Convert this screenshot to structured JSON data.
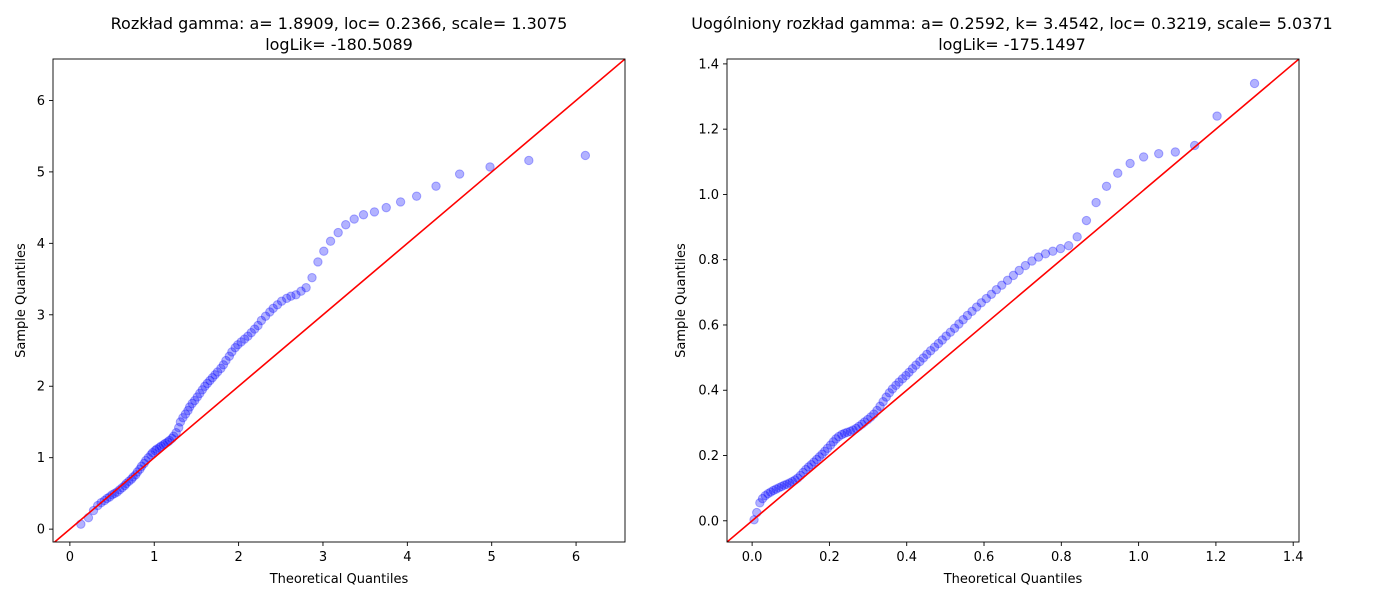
{
  "colors": {
    "points": "#0000ff",
    "reference_line": "#ff0000",
    "axes": "#000000",
    "background": "#ffffff"
  },
  "chart_data": [
    {
      "type": "scatter",
      "title": "Rozkład gamma: a= 1.8909, loc= 0.2366, scale= 1.3075",
      "subtitle": "logLik= -180.5089",
      "xlabel": "Theoretical Quantiles",
      "ylabel": "Sample Quantiles",
      "xlim": [
        -0.2,
        6.58
      ],
      "ylim": [
        -0.18,
        6.58
      ],
      "xticks": [
        0,
        1,
        2,
        3,
        4,
        5,
        6
      ],
      "xtick_labels": [
        "0",
        "1",
        "2",
        "3",
        "4",
        "5",
        "6"
      ],
      "yticks": [
        0,
        1,
        2,
        3,
        4,
        5,
        6
      ],
      "ytick_labels": [
        "0",
        "1",
        "2",
        "3",
        "4",
        "5",
        "6"
      ],
      "grid": false,
      "reference_line": {
        "slope": 1,
        "intercept": 0
      },
      "points": {
        "x": [
          0.13,
          0.22,
          0.28,
          0.33,
          0.37,
          0.41,
          0.44,
          0.47,
          0.5,
          0.53,
          0.56,
          0.59,
          0.62,
          0.65,
          0.67,
          0.7,
          0.73,
          0.75,
          0.78,
          0.8,
          0.83,
          0.85,
          0.88,
          0.9,
          0.93,
          0.96,
          0.98,
          1.01,
          1.03,
          1.06,
          1.08,
          1.11,
          1.13,
          1.16,
          1.18,
          1.21,
          1.23,
          1.26,
          1.29,
          1.31,
          1.34,
          1.37,
          1.4,
          1.42,
          1.45,
          1.48,
          1.51,
          1.54,
          1.57,
          1.6,
          1.63,
          1.66,
          1.69,
          1.72,
          1.75,
          1.79,
          1.82,
          1.85,
          1.89,
          1.92,
          1.96,
          1.99,
          2.03,
          2.07,
          2.11,
          2.15,
          2.19,
          2.23,
          2.27,
          2.32,
          2.37,
          2.41,
          2.46,
          2.51,
          2.57,
          2.62,
          2.68,
          2.74,
          2.8,
          2.87,
          2.94,
          3.01,
          3.09,
          3.18,
          3.27,
          3.37,
          3.48,
          3.61,
          3.75,
          3.92,
          4.11,
          4.34,
          4.62,
          4.98,
          5.44,
          6.11
        ],
        "y": [
          0.07,
          0.16,
          0.26,
          0.33,
          0.37,
          0.4,
          0.43,
          0.45,
          0.48,
          0.5,
          0.52,
          0.55,
          0.58,
          0.61,
          0.64,
          0.67,
          0.7,
          0.73,
          0.76,
          0.8,
          0.84,
          0.88,
          0.92,
          0.96,
          1.0,
          1.04,
          1.07,
          1.1,
          1.12,
          1.14,
          1.16,
          1.18,
          1.2,
          1.22,
          1.24,
          1.27,
          1.3,
          1.35,
          1.42,
          1.5,
          1.56,
          1.61,
          1.66,
          1.71,
          1.76,
          1.8,
          1.85,
          1.9,
          1.95,
          2.0,
          2.04,
          2.08,
          2.12,
          2.16,
          2.2,
          2.25,
          2.3,
          2.36,
          2.42,
          2.48,
          2.54,
          2.58,
          2.62,
          2.66,
          2.7,
          2.75,
          2.8,
          2.85,
          2.92,
          2.98,
          3.04,
          3.09,
          3.14,
          3.19,
          3.23,
          3.26,
          3.28,
          3.33,
          3.38,
          3.52,
          3.74,
          3.89,
          4.03,
          4.15,
          4.26,
          4.34,
          4.4,
          4.44,
          4.5,
          4.58,
          4.66,
          4.8,
          4.97,
          5.07,
          5.16,
          5.23
        ]
      }
    },
    {
      "type": "scatter",
      "title": "Uogólniony rozkład gamma: a= 0.2592, k= 3.4542, loc= 0.3219, scale= 5.0371",
      "subtitle": "logLik= -175.1497",
      "xlabel": "Theoretical Quantiles",
      "ylabel": "Sample Quantiles",
      "xlim": [
        -0.065,
        1.415
      ],
      "ylim": [
        -0.065,
        1.415
      ],
      "xticks": [
        0.0,
        0.2,
        0.4,
        0.6,
        0.8,
        1.0,
        1.2,
        1.4
      ],
      "xtick_labels": [
        "0.0",
        "0.2",
        "0.4",
        "0.6",
        "0.8",
        "1.0",
        "1.2",
        "1.4"
      ],
      "yticks": [
        0.0,
        0.2,
        0.4,
        0.6,
        0.8,
        1.0,
        1.2,
        1.4
      ],
      "ytick_labels": [
        "0.0",
        "0.2",
        "0.4",
        "0.6",
        "0.8",
        "1.0",
        "1.2",
        "1.4"
      ],
      "grid": false,
      "reference_line": {
        "slope": 1,
        "intercept": 0
      },
      "points": {
        "x": [
          0.005,
          0.012,
          0.02,
          0.027,
          0.034,
          0.041,
          0.048,
          0.055,
          0.062,
          0.069,
          0.076,
          0.083,
          0.09,
          0.097,
          0.104,
          0.111,
          0.118,
          0.125,
          0.132,
          0.139,
          0.146,
          0.153,
          0.16,
          0.167,
          0.174,
          0.181,
          0.188,
          0.195,
          0.203,
          0.21,
          0.217,
          0.224,
          0.232,
          0.239,
          0.246,
          0.254,
          0.261,
          0.269,
          0.276,
          0.284,
          0.291,
          0.299,
          0.307,
          0.315,
          0.323,
          0.331,
          0.339,
          0.347,
          0.355,
          0.363,
          0.372,
          0.38,
          0.389,
          0.398,
          0.406,
          0.415,
          0.424,
          0.434,
          0.443,
          0.452,
          0.462,
          0.472,
          0.482,
          0.492,
          0.502,
          0.513,
          0.524,
          0.535,
          0.546,
          0.557,
          0.569,
          0.581,
          0.593,
          0.606,
          0.619,
          0.632,
          0.646,
          0.661,
          0.676,
          0.691,
          0.707,
          0.724,
          0.741,
          0.759,
          0.778,
          0.798,
          0.819,
          0.841,
          0.865,
          0.89,
          0.917,
          0.946,
          0.978,
          1.013,
          1.052,
          1.095,
          1.145,
          1.203,
          1.3
        ],
        "y": [
          0.003,
          0.025,
          0.055,
          0.068,
          0.077,
          0.083,
          0.088,
          0.093,
          0.097,
          0.101,
          0.105,
          0.109,
          0.112,
          0.116,
          0.12,
          0.125,
          0.131,
          0.139,
          0.148,
          0.157,
          0.165,
          0.172,
          0.18,
          0.188,
          0.196,
          0.204,
          0.213,
          0.222,
          0.232,
          0.242,
          0.251,
          0.258,
          0.264,
          0.268,
          0.271,
          0.274,
          0.278,
          0.283,
          0.289,
          0.296,
          0.303,
          0.31,
          0.318,
          0.327,
          0.338,
          0.351,
          0.365,
          0.379,
          0.392,
          0.404,
          0.415,
          0.425,
          0.435,
          0.445,
          0.455,
          0.466,
          0.477,
          0.488,
          0.499,
          0.51,
          0.521,
          0.532,
          0.543,
          0.554,
          0.566,
          0.578,
          0.59,
          0.603,
          0.616,
          0.629,
          0.642,
          0.655,
          0.668,
          0.681,
          0.694,
          0.708,
          0.722,
          0.737,
          0.752,
          0.767,
          0.782,
          0.796,
          0.808,
          0.818,
          0.826,
          0.834,
          0.843,
          0.87,
          0.92,
          0.975,
          1.025,
          1.065,
          1.095,
          1.115,
          1.125,
          1.13,
          1.15,
          1.24,
          1.34
        ]
      }
    }
  ]
}
